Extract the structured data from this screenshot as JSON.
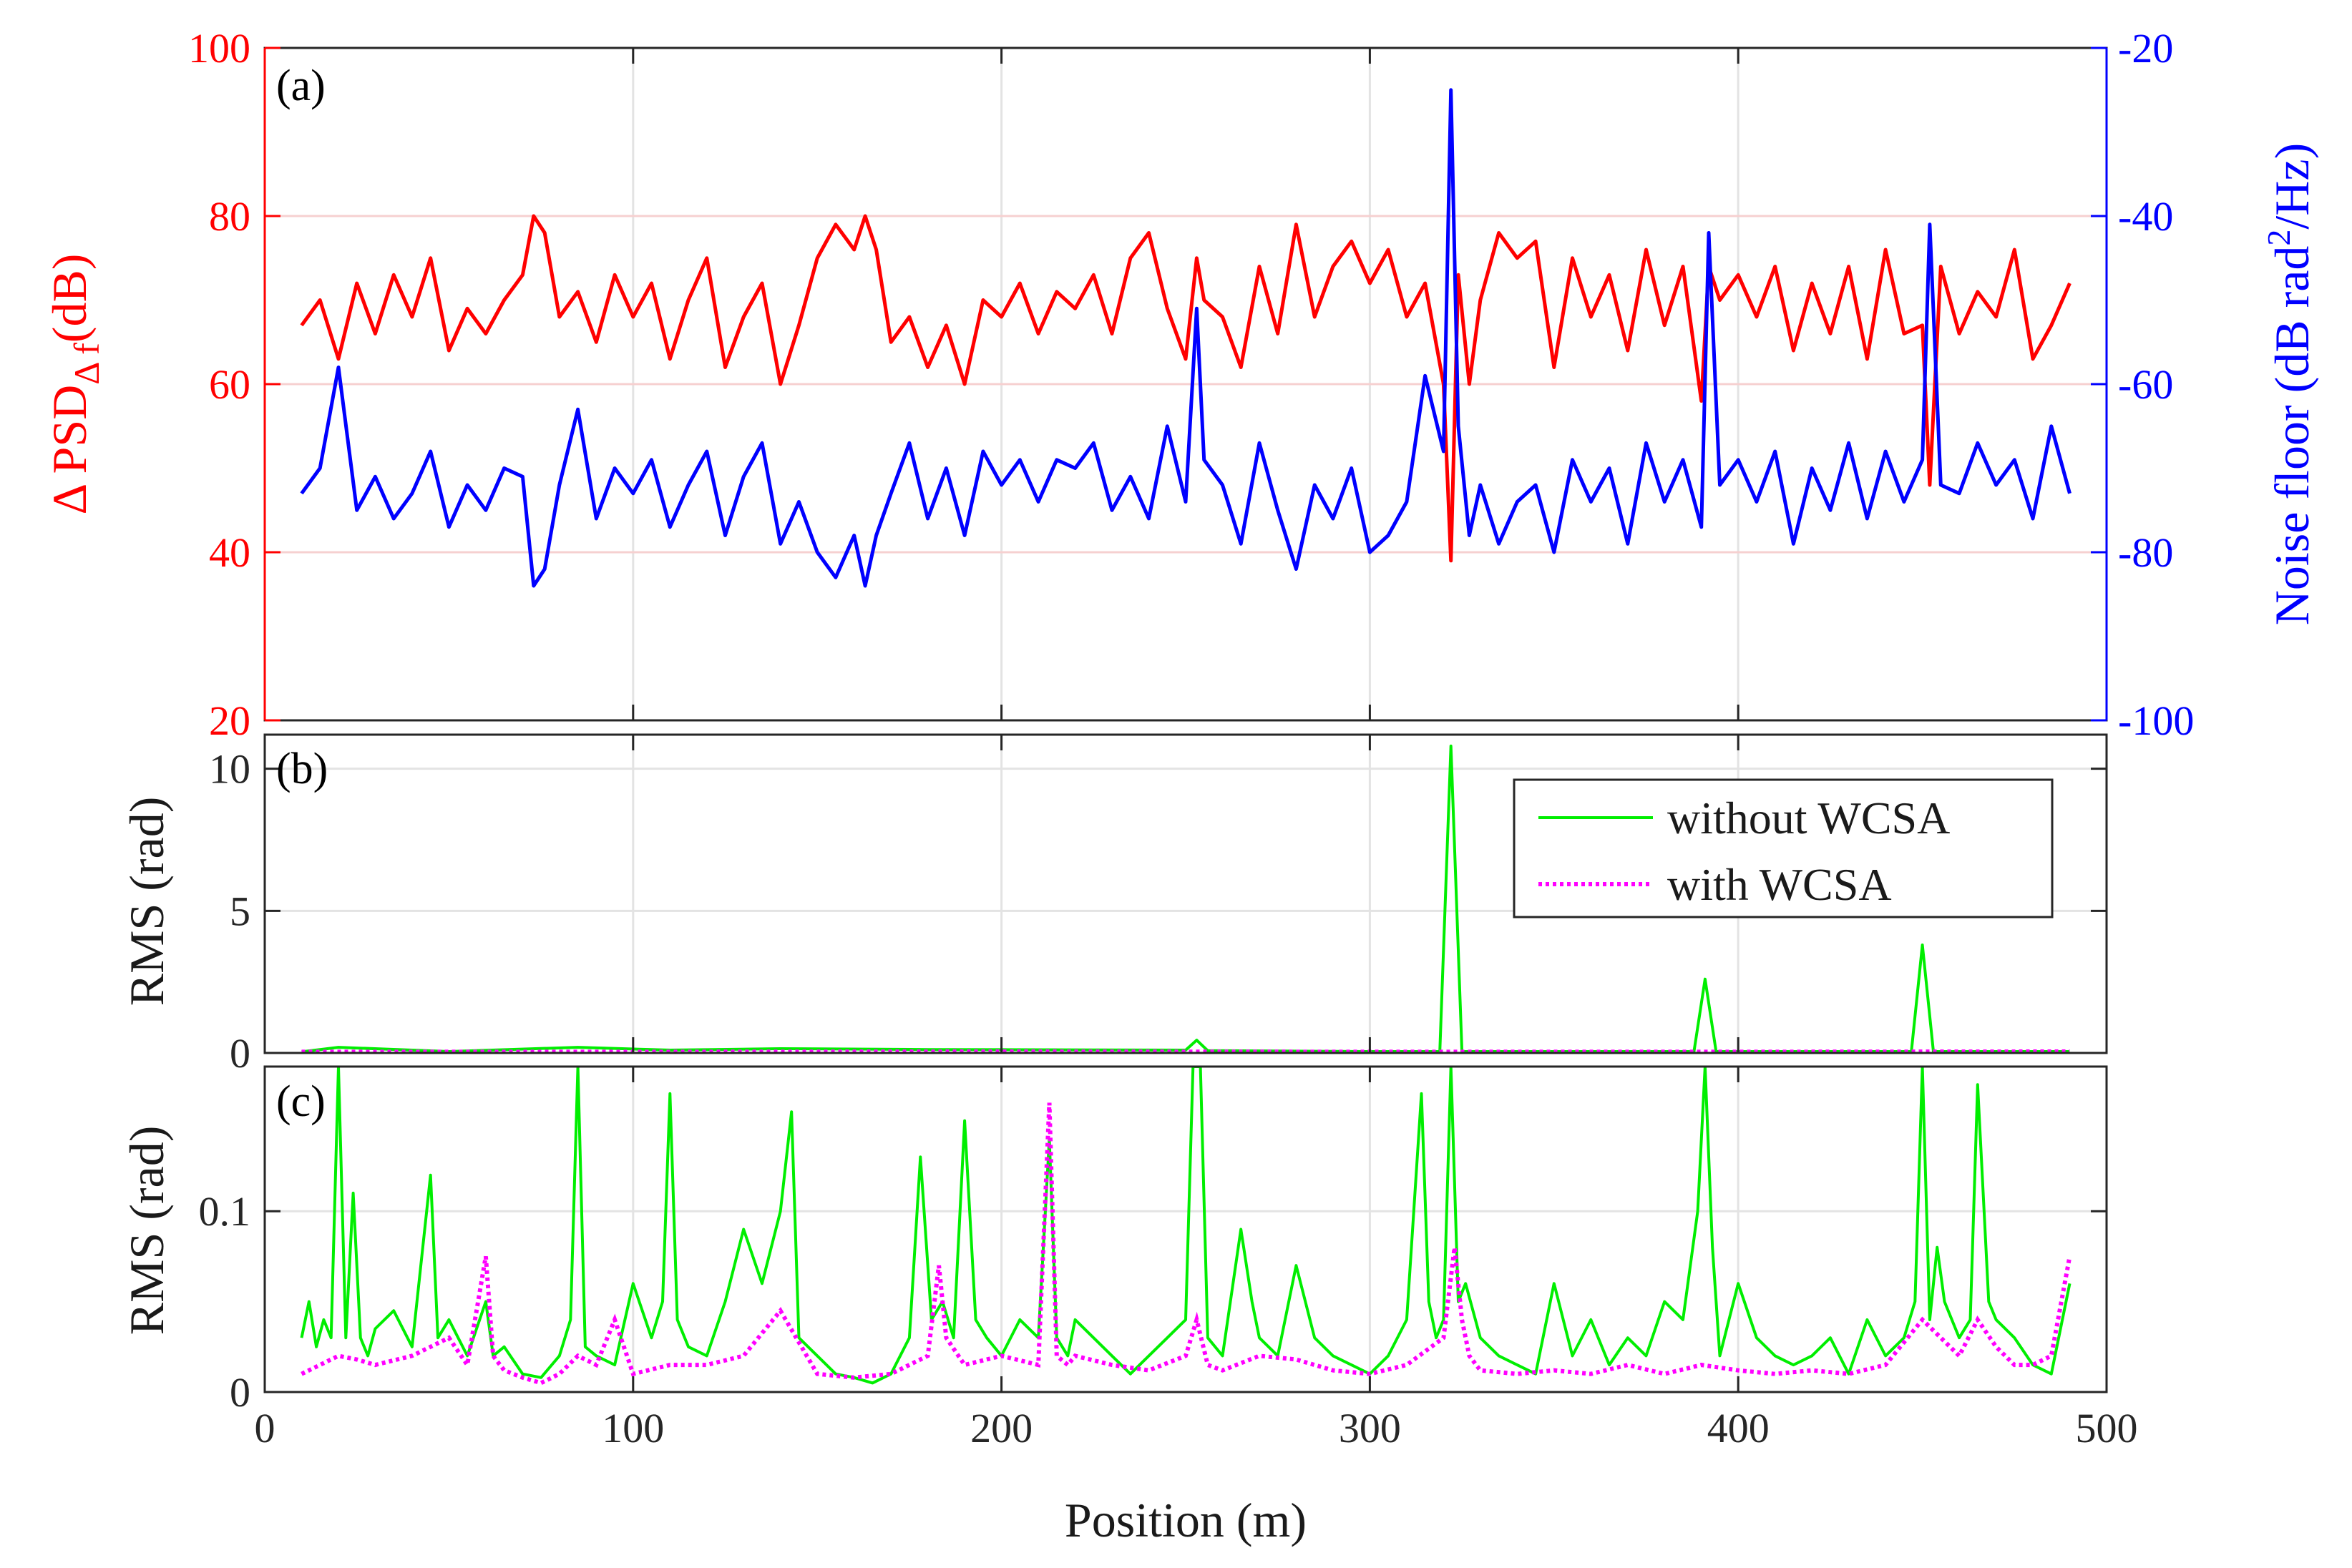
{
  "chart_data": [
    {
      "panel_label": "(a)",
      "type": "line",
      "dual_axis": true,
      "xlim": [
        0,
        500
      ],
      "xticks": [
        0,
        100,
        200,
        300,
        400,
        500
      ],
      "grid": true,
      "left_axis": {
        "label_main": "Δ PSD",
        "label_sub": "Δ f",
        "label_unit": "(dB)",
        "ylim": [
          20,
          100
        ],
        "ticks": [
          20,
          40,
          60,
          80,
          100
        ],
        "color": "#ff0000"
      },
      "right_axis": {
        "label_main": "Noise floor (dB rad",
        "label_sup": "2",
        "label_end": "/Hz)",
        "ylim": [
          -100,
          -20
        ],
        "ticks": [
          -100,
          -80,
          -60,
          -40,
          -20
        ],
        "color": "#0000ff"
      },
      "series": [
        {
          "name": "ΔPSD",
          "axis": "left",
          "color": "#ff0000",
          "x": [
            10,
            15,
            20,
            25,
            30,
            35,
            40,
            45,
            50,
            55,
            60,
            65,
            70,
            73,
            76,
            80,
            85,
            90,
            95,
            100,
            105,
            110,
            115,
            120,
            125,
            130,
            135,
            140,
            145,
            150,
            155,
            160,
            163,
            166,
            170,
            175,
            180,
            185,
            190,
            195,
            200,
            205,
            210,
            215,
            220,
            225,
            230,
            235,
            240,
            245,
            250,
            253,
            255,
            260,
            265,
            270,
            275,
            280,
            285,
            290,
            295,
            300,
            305,
            310,
            315,
            320,
            322,
            324,
            327,
            330,
            335,
            340,
            345,
            350,
            355,
            360,
            365,
            370,
            375,
            380,
            385,
            390,
            392,
            395,
            400,
            405,
            410,
            415,
            420,
            425,
            430,
            435,
            440,
            445,
            450,
            452,
            455,
            460,
            465,
            470,
            475,
            480,
            485,
            490
          ],
          "values": [
            67,
            70,
            63,
            72,
            66,
            73,
            68,
            75,
            64,
            69,
            66,
            70,
            73,
            80,
            78,
            68,
            71,
            65,
            73,
            68,
            72,
            63,
            70,
            75,
            62,
            68,
            72,
            60,
            67,
            75,
            79,
            76,
            80,
            76,
            65,
            68,
            62,
            67,
            60,
            70,
            68,
            72,
            66,
            71,
            69,
            73,
            66,
            75,
            78,
            69,
            63,
            75,
            70,
            68,
            62,
            74,
            66,
            79,
            68,
            74,
            77,
            72,
            76,
            68,
            72,
            60,
            39,
            73,
            60,
            70,
            78,
            75,
            77,
            62,
            75,
            68,
            73,
            64,
            76,
            67,
            74,
            58,
            74,
            70,
            73,
            68,
            74,
            64,
            72,
            66,
            74,
            63,
            76,
            66,
            67,
            48,
            74,
            66,
            71,
            68,
            76,
            63,
            67,
            72
          ]
        },
        {
          "name": "Noise floor",
          "axis": "right",
          "color": "#0000ff",
          "x": [
            10,
            15,
            20,
            25,
            30,
            35,
            40,
            45,
            50,
            55,
            60,
            65,
            70,
            73,
            76,
            80,
            85,
            90,
            95,
            100,
            105,
            110,
            115,
            120,
            125,
            130,
            135,
            140,
            145,
            150,
            155,
            160,
            163,
            166,
            170,
            175,
            180,
            185,
            190,
            195,
            200,
            205,
            210,
            215,
            220,
            225,
            230,
            235,
            240,
            245,
            250,
            253,
            255,
            260,
            265,
            270,
            275,
            280,
            285,
            290,
            295,
            300,
            305,
            310,
            315,
            320,
            322,
            324,
            327,
            330,
            335,
            340,
            345,
            350,
            355,
            360,
            365,
            370,
            375,
            380,
            385,
            390,
            392,
            395,
            400,
            405,
            410,
            415,
            420,
            425,
            430,
            435,
            440,
            445,
            450,
            452,
            455,
            460,
            465,
            470,
            475,
            480,
            485,
            490
          ],
          "values": [
            -73,
            -70,
            -58,
            -75,
            -71,
            -76,
            -73,
            -68,
            -77,
            -72,
            -75,
            -70,
            -71,
            -84,
            -82,
            -72,
            -63,
            -76,
            -70,
            -73,
            -69,
            -77,
            -72,
            -68,
            -78,
            -71,
            -67,
            -79,
            -74,
            -80,
            -83,
            -78,
            -84,
            -78,
            -73,
            -67,
            -76,
            -70,
            -78,
            -68,
            -72,
            -69,
            -74,
            -69,
            -70,
            -67,
            -75,
            -71,
            -76,
            -65,
            -74,
            -51,
            -69,
            -72,
            -79,
            -67,
            -75,
            -82,
            -72,
            -76,
            -70,
            -80,
            -78,
            -74,
            -59,
            -68,
            -25,
            -65,
            -78,
            -72,
            -79,
            -74,
            -72,
            -80,
            -69,
            -74,
            -70,
            -79,
            -67,
            -74,
            -69,
            -77,
            -42,
            -72,
            -69,
            -74,
            -68,
            -79,
            -70,
            -75,
            -67,
            -76,
            -68,
            -74,
            -69,
            -41,
            -72,
            -73,
            -67,
            -72,
            -69,
            -76,
            -65,
            -73
          ]
        }
      ]
    },
    {
      "panel_label": "(b)",
      "type": "line",
      "xlim": [
        0,
        500
      ],
      "ylim": [
        0,
        11.2
      ],
      "yticks": [
        0,
        5,
        10
      ],
      "ylabel": "RMS (rad)",
      "grid": true,
      "legend": {
        "placement": "top-right",
        "entries": [
          "without WCSA",
          "with WCSA"
        ]
      },
      "series": [
        {
          "name": "without WCSA",
          "color": "#00ee00",
          "style": "solid",
          "x": [
            10,
            20,
            50,
            85,
            110,
            140,
            180,
            250,
            253,
            256,
            300,
            319,
            322,
            325,
            380,
            388,
            391,
            394,
            440,
            447,
            450,
            453,
            490
          ],
          "values": [
            0.04,
            0.2,
            0.05,
            0.2,
            0.1,
            0.15,
            0.12,
            0.1,
            0.45,
            0.08,
            0.05,
            0.05,
            10.8,
            0.05,
            0.05,
            0.05,
            2.6,
            0.05,
            0.05,
            0.05,
            3.8,
            0.05,
            0.05
          ]
        },
        {
          "name": "with WCSA",
          "color": "#ff00ff",
          "style": "dotted",
          "x": [
            10,
            100,
            200,
            300,
            400,
            490
          ],
          "values": [
            0.04,
            0.04,
            0.05,
            0.04,
            0.04,
            0.05
          ]
        }
      ]
    },
    {
      "panel_label": "(c)",
      "type": "line",
      "xlim": [
        0,
        500
      ],
      "ylim": [
        0,
        0.18
      ],
      "yticks": [
        0,
        0.1
      ],
      "ylabel": "RMS (rad)",
      "xlabel": "Position (m)",
      "xticks": [
        0,
        100,
        200,
        300,
        400,
        500
      ],
      "grid": true,
      "series": [
        {
          "name": "without WCSA",
          "color": "#00ee00",
          "style": "solid",
          "x": [
            10,
            12,
            14,
            16,
            18,
            20,
            22,
            24,
            26,
            28,
            30,
            35,
            40,
            45,
            47,
            50,
            55,
            60,
            62,
            65,
            70,
            75,
            80,
            83,
            85,
            87,
            90,
            95,
            100,
            105,
            108,
            110,
            112,
            115,
            120,
            125,
            130,
            135,
            140,
            143,
            145,
            150,
            155,
            160,
            165,
            170,
            175,
            178,
            181,
            184,
            187,
            190,
            193,
            196,
            200,
            205,
            210,
            213,
            215,
            218,
            220,
            225,
            230,
            235,
            240,
            245,
            250,
            252,
            254,
            256,
            260,
            265,
            268,
            270,
            275,
            280,
            285,
            290,
            295,
            300,
            305,
            310,
            314,
            316,
            318,
            320,
            322,
            324,
            326,
            330,
            335,
            340,
            345,
            350,
            355,
            360,
            365,
            370,
            375,
            380,
            385,
            389,
            391,
            393,
            395,
            400,
            405,
            410,
            415,
            420,
            425,
            430,
            435,
            440,
            445,
            448,
            450,
            452,
            454,
            456,
            460,
            463,
            465,
            468,
            470,
            475,
            480,
            485,
            490
          ],
          "values": [
            0.03,
            0.05,
            0.025,
            0.04,
            0.03,
            0.18,
            0.03,
            0.11,
            0.03,
            0.02,
            0.035,
            0.045,
            0.025,
            0.12,
            0.03,
            0.04,
            0.02,
            0.05,
            0.02,
            0.025,
            0.01,
            0.008,
            0.02,
            0.04,
            0.18,
            0.025,
            0.02,
            0.015,
            0.06,
            0.03,
            0.05,
            0.165,
            0.04,
            0.025,
            0.02,
            0.05,
            0.09,
            0.06,
            0.1,
            0.155,
            0.03,
            0.02,
            0.01,
            0.008,
            0.005,
            0.01,
            0.03,
            0.13,
            0.04,
            0.05,
            0.03,
            0.15,
            0.04,
            0.03,
            0.02,
            0.04,
            0.03,
            0.14,
            0.03,
            0.02,
            0.04,
            0.03,
            0.02,
            0.01,
            0.02,
            0.03,
            0.04,
            0.18,
            0.18,
            0.03,
            0.02,
            0.09,
            0.05,
            0.03,
            0.02,
            0.07,
            0.03,
            0.02,
            0.015,
            0.01,
            0.02,
            0.04,
            0.165,
            0.05,
            0.03,
            0.04,
            0.18,
            0.05,
            0.06,
            0.03,
            0.02,
            0.015,
            0.01,
            0.06,
            0.02,
            0.04,
            0.015,
            0.03,
            0.02,
            0.05,
            0.04,
            0.1,
            0.18,
            0.08,
            0.02,
            0.06,
            0.03,
            0.02,
            0.015,
            0.02,
            0.03,
            0.01,
            0.04,
            0.02,
            0.03,
            0.05,
            0.18,
            0.04,
            0.08,
            0.05,
            0.03,
            0.04,
            0.17,
            0.05,
            0.04,
            0.03,
            0.015,
            0.01,
            0.06
          ]
        },
        {
          "name": "with WCSA",
          "color": "#ff00ff",
          "style": "dotted",
          "x": [
            10,
            15,
            20,
            25,
            30,
            40,
            50,
            55,
            60,
            62,
            65,
            70,
            75,
            80,
            85,
            90,
            95,
            100,
            110,
            120,
            130,
            140,
            150,
            160,
            170,
            180,
            183,
            185,
            190,
            200,
            210,
            213,
            215,
            218,
            220,
            230,
            240,
            250,
            253,
            256,
            260,
            270,
            280,
            290,
            300,
            310,
            320,
            323,
            325,
            327,
            330,
            340,
            350,
            360,
            370,
            380,
            390,
            400,
            410,
            420,
            430,
            440,
            450,
            460,
            465,
            470,
            475,
            480,
            485,
            490
          ],
          "values": [
            0.01,
            0.015,
            0.02,
            0.018,
            0.015,
            0.02,
            0.03,
            0.015,
            0.075,
            0.02,
            0.012,
            0.008,
            0.005,
            0.01,
            0.02,
            0.015,
            0.04,
            0.01,
            0.015,
            0.015,
            0.02,
            0.045,
            0.01,
            0.008,
            0.01,
            0.02,
            0.07,
            0.03,
            0.015,
            0.02,
            0.015,
            0.16,
            0.02,
            0.015,
            0.02,
            0.015,
            0.012,
            0.02,
            0.04,
            0.015,
            0.012,
            0.02,
            0.018,
            0.012,
            0.01,
            0.015,
            0.03,
            0.08,
            0.04,
            0.02,
            0.012,
            0.01,
            0.012,
            0.01,
            0.015,
            0.01,
            0.015,
            0.012,
            0.01,
            0.012,
            0.01,
            0.015,
            0.04,
            0.02,
            0.04,
            0.025,
            0.015,
            0.015,
            0.02,
            0.075
          ]
        }
      ]
    }
  ]
}
